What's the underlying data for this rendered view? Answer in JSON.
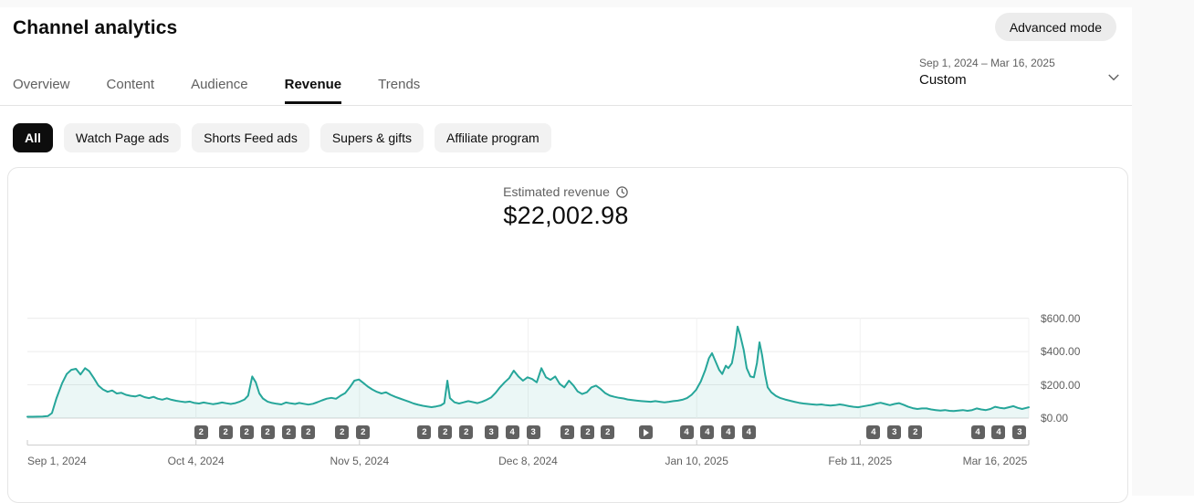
{
  "page": {
    "title": "Channel analytics",
    "advanced_mode_label": "Advanced mode"
  },
  "date_range": {
    "range": "Sep 1, 2024 – Mar 16, 2025",
    "preset": "Custom"
  },
  "tabs": [
    {
      "label": "Overview",
      "active": false
    },
    {
      "label": "Content",
      "active": false
    },
    {
      "label": "Audience",
      "active": false
    },
    {
      "label": "Revenue",
      "active": true
    },
    {
      "label": "Trends",
      "active": false
    }
  ],
  "filters": [
    {
      "label": "All",
      "active": true
    },
    {
      "label": "Watch Page ads",
      "active": false
    },
    {
      "label": "Shorts Feed ads",
      "active": false
    },
    {
      "label": "Supers & gifts",
      "active": false
    },
    {
      "label": "Affiliate program",
      "active": false
    }
  ],
  "chart_data": {
    "type": "area",
    "metric_label": "Estimated revenue",
    "total": "$22,002.98",
    "line_color": "#26a69a",
    "fill_color": "rgba(38,166,154,0.09)",
    "ylim": [
      0,
      600
    ],
    "total_days": 196,
    "y_ticks": [
      {
        "label": "$600.00",
        "value": 600
      },
      {
        "label": "$400.00",
        "value": 400
      },
      {
        "label": "$200.00",
        "value": 200
      },
      {
        "label": "$0.00",
        "value": 0
      }
    ],
    "x_ticks": [
      {
        "label": "Sep 1, 2024",
        "day": 0
      },
      {
        "label": "Oct 4, 2024",
        "day": 33
      },
      {
        "label": "Nov 5, 2024",
        "day": 65
      },
      {
        "label": "Dec 8, 2024",
        "day": 98
      },
      {
        "label": "Jan 10, 2025",
        "day": 131
      },
      {
        "label": "Feb 11, 2025",
        "day": 163
      },
      {
        "label": "Mar 16, 2025",
        "day": 196
      }
    ],
    "series": [
      [
        0,
        8
      ],
      [
        1,
        8
      ],
      [
        2,
        9
      ],
      [
        3,
        10
      ],
      [
        4,
        12
      ],
      [
        4.8,
        30
      ],
      [
        5.7,
        120
      ],
      [
        6.8,
        210
      ],
      [
        7.7,
        265
      ],
      [
        8.6,
        290
      ],
      [
        9.5,
        296
      ],
      [
        10.4,
        262
      ],
      [
        11.3,
        300
      ],
      [
        12.1,
        282
      ],
      [
        13,
        240
      ],
      [
        13.9,
        195
      ],
      [
        14.8,
        172
      ],
      [
        15.7,
        158
      ],
      [
        16.6,
        166
      ],
      [
        17.5,
        148
      ],
      [
        18.4,
        152
      ],
      [
        19.3,
        140
      ],
      [
        20.2,
        134
      ],
      [
        21.1,
        130
      ],
      [
        22,
        138
      ],
      [
        22.9,
        126
      ],
      [
        23.8,
        120
      ],
      [
        24.7,
        128
      ],
      [
        25.5,
        117
      ],
      [
        26.4,
        111
      ],
      [
        27.3,
        119
      ],
      [
        28.2,
        110
      ],
      [
        29.1,
        104
      ],
      [
        30,
        100
      ],
      [
        30.9,
        96
      ],
      [
        31.8,
        99
      ],
      [
        32.7,
        91
      ],
      [
        33.6,
        88
      ],
      [
        34.5,
        94
      ],
      [
        35.4,
        89
      ],
      [
        36.3,
        84
      ],
      [
        37.2,
        88
      ],
      [
        38.1,
        94
      ],
      [
        39,
        89
      ],
      [
        39.8,
        85
      ],
      [
        40.7,
        90
      ],
      [
        41.6,
        99
      ],
      [
        42.5,
        112
      ],
      [
        43.2,
        135
      ],
      [
        44,
        250
      ],
      [
        44.7,
        215
      ],
      [
        45.4,
        148
      ],
      [
        46.1,
        118
      ],
      [
        47,
        99
      ],
      [
        47.9,
        91
      ],
      [
        48.8,
        86
      ],
      [
        49.7,
        82
      ],
      [
        50.6,
        94
      ],
      [
        51.5,
        89
      ],
      [
        52.4,
        85
      ],
      [
        53.2,
        91
      ],
      [
        54.1,
        86
      ],
      [
        55,
        81
      ],
      [
        55.9,
        86
      ],
      [
        56.8,
        96
      ],
      [
        57.7,
        107
      ],
      [
        58.6,
        117
      ],
      [
        59.5,
        122
      ],
      [
        60.4,
        116
      ],
      [
        61.3,
        135
      ],
      [
        62.2,
        150
      ],
      [
        63.1,
        185
      ],
      [
        64,
        225
      ],
      [
        64.9,
        232
      ],
      [
        65.8,
        210
      ],
      [
        66.6,
        190
      ],
      [
        67.5,
        172
      ],
      [
        68.4,
        158
      ],
      [
        69.3,
        148
      ],
      [
        70.2,
        155
      ],
      [
        71.1,
        140
      ],
      [
        72,
        128
      ],
      [
        72.9,
        118
      ],
      [
        73.8,
        108
      ],
      [
        74.7,
        98
      ],
      [
        75.6,
        88
      ],
      [
        76.5,
        80
      ],
      [
        77.4,
        74
      ],
      [
        78.2,
        70
      ],
      [
        79.1,
        66
      ],
      [
        80,
        70
      ],
      [
        80.9,
        76
      ],
      [
        81.6,
        90
      ],
      [
        82.2,
        225
      ],
      [
        82.7,
        120
      ],
      [
        83.6,
        95
      ],
      [
        84.5,
        88
      ],
      [
        85.4,
        95
      ],
      [
        86.3,
        102
      ],
      [
        87.2,
        96
      ],
      [
        88.1,
        90
      ],
      [
        89,
        98
      ],
      [
        89.9,
        110
      ],
      [
        90.8,
        125
      ],
      [
        91.6,
        150
      ],
      [
        92.5,
        185
      ],
      [
        93.4,
        215
      ],
      [
        94.3,
        240
      ],
      [
        95.2,
        285
      ],
      [
        96.1,
        250
      ],
      [
        97,
        225
      ],
      [
        97.9,
        245
      ],
      [
        98.8,
        235
      ],
      [
        99.7,
        215
      ],
      [
        100.6,
        300
      ],
      [
        101.5,
        245
      ],
      [
        102.4,
        230
      ],
      [
        103.3,
        250
      ],
      [
        104.2,
        205
      ],
      [
        105.1,
        185
      ],
      [
        106,
        225
      ],
      [
        106.9,
        195
      ],
      [
        107.7,
        160
      ],
      [
        108.6,
        145
      ],
      [
        109.5,
        155
      ],
      [
        110.4,
        185
      ],
      [
        111.3,
        195
      ],
      [
        112.2,
        175
      ],
      [
        113.1,
        150
      ],
      [
        114,
        135
      ],
      [
        114.9,
        128
      ],
      [
        115.8,
        122
      ],
      [
        116.7,
        118
      ],
      [
        117.5,
        112
      ],
      [
        118.4,
        108
      ],
      [
        119.3,
        105
      ],
      [
        120.2,
        102
      ],
      [
        121.1,
        100
      ],
      [
        122,
        98
      ],
      [
        122.9,
        102
      ],
      [
        123.8,
        98
      ],
      [
        124.7,
        95
      ],
      [
        125.6,
        98
      ],
      [
        126.4,
        102
      ],
      [
        127.3,
        105
      ],
      [
        128.2,
        110
      ],
      [
        129.1,
        120
      ],
      [
        130,
        140
      ],
      [
        130.9,
        170
      ],
      [
        131.8,
        220
      ],
      [
        132.7,
        290
      ],
      [
        133.4,
        360
      ],
      [
        134,
        390
      ],
      [
        134.7,
        340
      ],
      [
        135.4,
        290
      ],
      [
        136,
        265
      ],
      [
        136.7,
        315
      ],
      [
        137.2,
        300
      ],
      [
        137.9,
        330
      ],
      [
        138.5,
        430
      ],
      [
        139,
        550
      ],
      [
        139.5,
        500
      ],
      [
        140.2,
        410
      ],
      [
        140.8,
        300
      ],
      [
        141.5,
        250
      ],
      [
        142.2,
        245
      ],
      [
        142.8,
        330
      ],
      [
        143.3,
        455
      ],
      [
        143.8,
        380
      ],
      [
        144.4,
        260
      ],
      [
        144.9,
        185
      ],
      [
        145.6,
        155
      ],
      [
        146.5,
        133
      ],
      [
        147.4,
        120
      ],
      [
        148.3,
        112
      ],
      [
        149.2,
        105
      ],
      [
        150.1,
        98
      ],
      [
        151,
        92
      ],
      [
        151.9,
        88
      ],
      [
        152.8,
        85
      ],
      [
        153.7,
        82
      ],
      [
        154.5,
        80
      ],
      [
        155.4,
        82
      ],
      [
        156.3,
        78
      ],
      [
        157.2,
        75
      ],
      [
        158.1,
        78
      ],
      [
        159,
        82
      ],
      [
        159.9,
        78
      ],
      [
        160.8,
        72
      ],
      [
        161.7,
        68
      ],
      [
        162.6,
        65
      ],
      [
        163.5,
        70
      ],
      [
        164.4,
        75
      ],
      [
        165.3,
        80
      ],
      [
        166.2,
        88
      ],
      [
        167,
        92
      ],
      [
        167.9,
        85
      ],
      [
        168.8,
        78
      ],
      [
        169.7,
        85
      ],
      [
        170.6,
        90
      ],
      [
        171.5,
        80
      ],
      [
        172.4,
        68
      ],
      [
        173.3,
        60
      ],
      [
        174.2,
        55
      ],
      [
        175.1,
        58
      ],
      [
        176,
        58
      ],
      [
        176.9,
        52
      ],
      [
        177.8,
        48
      ],
      [
        178.7,
        45
      ],
      [
        179.6,
        48
      ],
      [
        180.5,
        44
      ],
      [
        181.3,
        42
      ],
      [
        182.2,
        45
      ],
      [
        183.1,
        48
      ],
      [
        184,
        44
      ],
      [
        184.9,
        48
      ],
      [
        185.8,
        58
      ],
      [
        186.7,
        52
      ],
      [
        187.6,
        48
      ],
      [
        188.5,
        55
      ],
      [
        189.4,
        68
      ],
      [
        190.3,
        62
      ],
      [
        191.2,
        58
      ],
      [
        192.1,
        65
      ],
      [
        193,
        72
      ],
      [
        193.8,
        62
      ],
      [
        194.7,
        55
      ],
      [
        195.6,
        62
      ],
      [
        196,
        65
      ]
    ],
    "video_markers": [
      {
        "day": 34,
        "label": "2"
      },
      {
        "day": 38.8,
        "label": "2"
      },
      {
        "day": 42.9,
        "label": "2"
      },
      {
        "day": 47,
        "label": "2"
      },
      {
        "day": 51.1,
        "label": "2"
      },
      {
        "day": 55,
        "label": "2"
      },
      {
        "day": 61.6,
        "label": "2"
      },
      {
        "day": 65.7,
        "label": "2"
      },
      {
        "day": 77.7,
        "label": "2"
      },
      {
        "day": 81.8,
        "label": "2"
      },
      {
        "day": 85.9,
        "label": "2"
      },
      {
        "day": 90.8,
        "label": "3"
      },
      {
        "day": 94.9,
        "label": "4"
      },
      {
        "day": 99,
        "label": "3"
      },
      {
        "day": 105.6,
        "label": "2"
      },
      {
        "day": 109.7,
        "label": "2"
      },
      {
        "day": 113.6,
        "label": "2"
      },
      {
        "day": 121,
        "icon": "play"
      },
      {
        "day": 129,
        "label": "4"
      },
      {
        "day": 133.1,
        "label": "4"
      },
      {
        "day": 137.2,
        "label": "4"
      },
      {
        "day": 141.2,
        "label": "4"
      },
      {
        "day": 165.6,
        "label": "4"
      },
      {
        "day": 169.7,
        "label": "3"
      },
      {
        "day": 173.8,
        "label": "2"
      },
      {
        "day": 186,
        "label": "4"
      },
      {
        "day": 190.1,
        "label": "4"
      },
      {
        "day": 194.2,
        "label": "3"
      }
    ]
  }
}
